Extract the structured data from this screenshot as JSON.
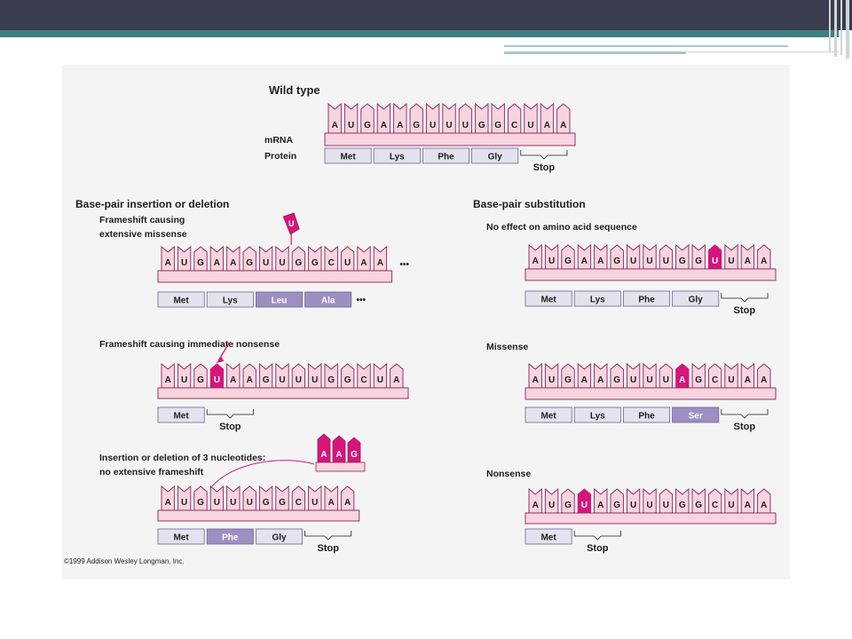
{
  "colors": {
    "banner": "#3a3d4d",
    "teal": "#3e7f82",
    "base_pink": "#f7d4df",
    "base_outline": "#8a2456",
    "mutant_magenta": "#d6157c",
    "protein_light": "#e4e2ee",
    "protein_dark": "#9d8fc2"
  },
  "copyright": "©1999 Addison Wesley Longman, Inc.",
  "panels": [
    {
      "id": "wild",
      "heading": "Wild type",
      "label_mrna": "mRNA",
      "label_protein": "Protein",
      "bases": [
        "A",
        "U",
        "G",
        "A",
        "A",
        "G",
        "U",
        "U",
        "U",
        "G",
        "G",
        "C",
        "U",
        "A",
        "A"
      ],
      "highlight": [],
      "proteins": [
        {
          "text": "Met",
          "dark": false
        },
        {
          "text": "Lys",
          "dark": false
        },
        {
          "text": "Phe",
          "dark": false
        },
        {
          "text": "Gly",
          "dark": false
        }
      ],
      "stop": "Stop",
      "trail_dots_mrna": "",
      "trail_dots_protein": ""
    },
    {
      "id": "frameshift-missense",
      "heading": "Base-pair insertion or deletion",
      "subtitle_lines": [
        "Frameshift causing",
        "extensive missense"
      ],
      "bases": [
        "A",
        "U",
        "G",
        "A",
        "A",
        "G",
        "U",
        "U",
        "G",
        "G",
        "C",
        "U",
        "A",
        "A"
      ],
      "highlight": [],
      "deleted_base": "U",
      "proteins": [
        {
          "text": "Met",
          "dark": false
        },
        {
          "text": "Lys",
          "dark": false
        },
        {
          "text": "Leu",
          "dark": true
        },
        {
          "text": "Ala",
          "dark": true
        }
      ],
      "stop": "",
      "trail_dots_mrna": "•••",
      "trail_dots_protein": "•••"
    },
    {
      "id": "frameshift-nonsense",
      "subtitle_lines": [
        "Frameshift causing immediate nonsense"
      ],
      "bases": [
        "A",
        "U",
        "G",
        "U",
        "A",
        "A",
        "G",
        "U",
        "U",
        "U",
        "G",
        "G",
        "C",
        "U",
        "A"
      ],
      "highlight": [
        3
      ],
      "proteins": [
        {
          "text": "Met",
          "dark": false
        }
      ],
      "stop": "Stop"
    },
    {
      "id": "triplet-indel",
      "subtitle_lines": [
        "Insertion or deletion of 3 nucleotides:",
        "no extensive frameshift"
      ],
      "bases": [
        "A",
        "U",
        "G",
        "U",
        "U",
        "U",
        "G",
        "G",
        "C",
        "U",
        "A",
        "A"
      ],
      "highlight": [],
      "removed_bases": [
        "A",
        "A",
        "G"
      ],
      "proteins": [
        {
          "text": "Met",
          "dark": false
        },
        {
          "text": "Phe",
          "dark": true
        },
        {
          "text": "Gly",
          "dark": false
        }
      ],
      "stop": "Stop"
    },
    {
      "id": "silent",
      "heading": "Base-pair substitution",
      "subtitle_lines": [
        "No effect on amino acid sequence"
      ],
      "bases": [
        "A",
        "U",
        "G",
        "A",
        "A",
        "G",
        "U",
        "U",
        "U",
        "G",
        "G",
        "U",
        "U",
        "A",
        "A"
      ],
      "highlight": [
        11
      ],
      "proteins": [
        {
          "text": "Met",
          "dark": false
        },
        {
          "text": "Lys",
          "dark": false
        },
        {
          "text": "Phe",
          "dark": false
        },
        {
          "text": "Gly",
          "dark": false
        }
      ],
      "stop": "Stop"
    },
    {
      "id": "missense",
      "subtitle_lines": [
        "Missense"
      ],
      "bases": [
        "A",
        "U",
        "G",
        "A",
        "A",
        "G",
        "U",
        "U",
        "U",
        "A",
        "G",
        "C",
        "U",
        "A",
        "A"
      ],
      "highlight": [
        9
      ],
      "proteins": [
        {
          "text": "Met",
          "dark": false
        },
        {
          "text": "Lys",
          "dark": false
        },
        {
          "text": "Phe",
          "dark": false
        },
        {
          "text": "Ser",
          "dark": true
        }
      ],
      "stop": "Stop"
    },
    {
      "id": "nonsense",
      "subtitle_lines": [
        "Nonsense"
      ],
      "bases": [
        "A",
        "U",
        "G",
        "U",
        "A",
        "G",
        "U",
        "U",
        "U",
        "G",
        "G",
        "C",
        "U",
        "A",
        "A"
      ],
      "highlight": [
        3
      ],
      "proteins": [
        {
          "text": "Met",
          "dark": false
        }
      ],
      "stop": "Stop"
    }
  ]
}
